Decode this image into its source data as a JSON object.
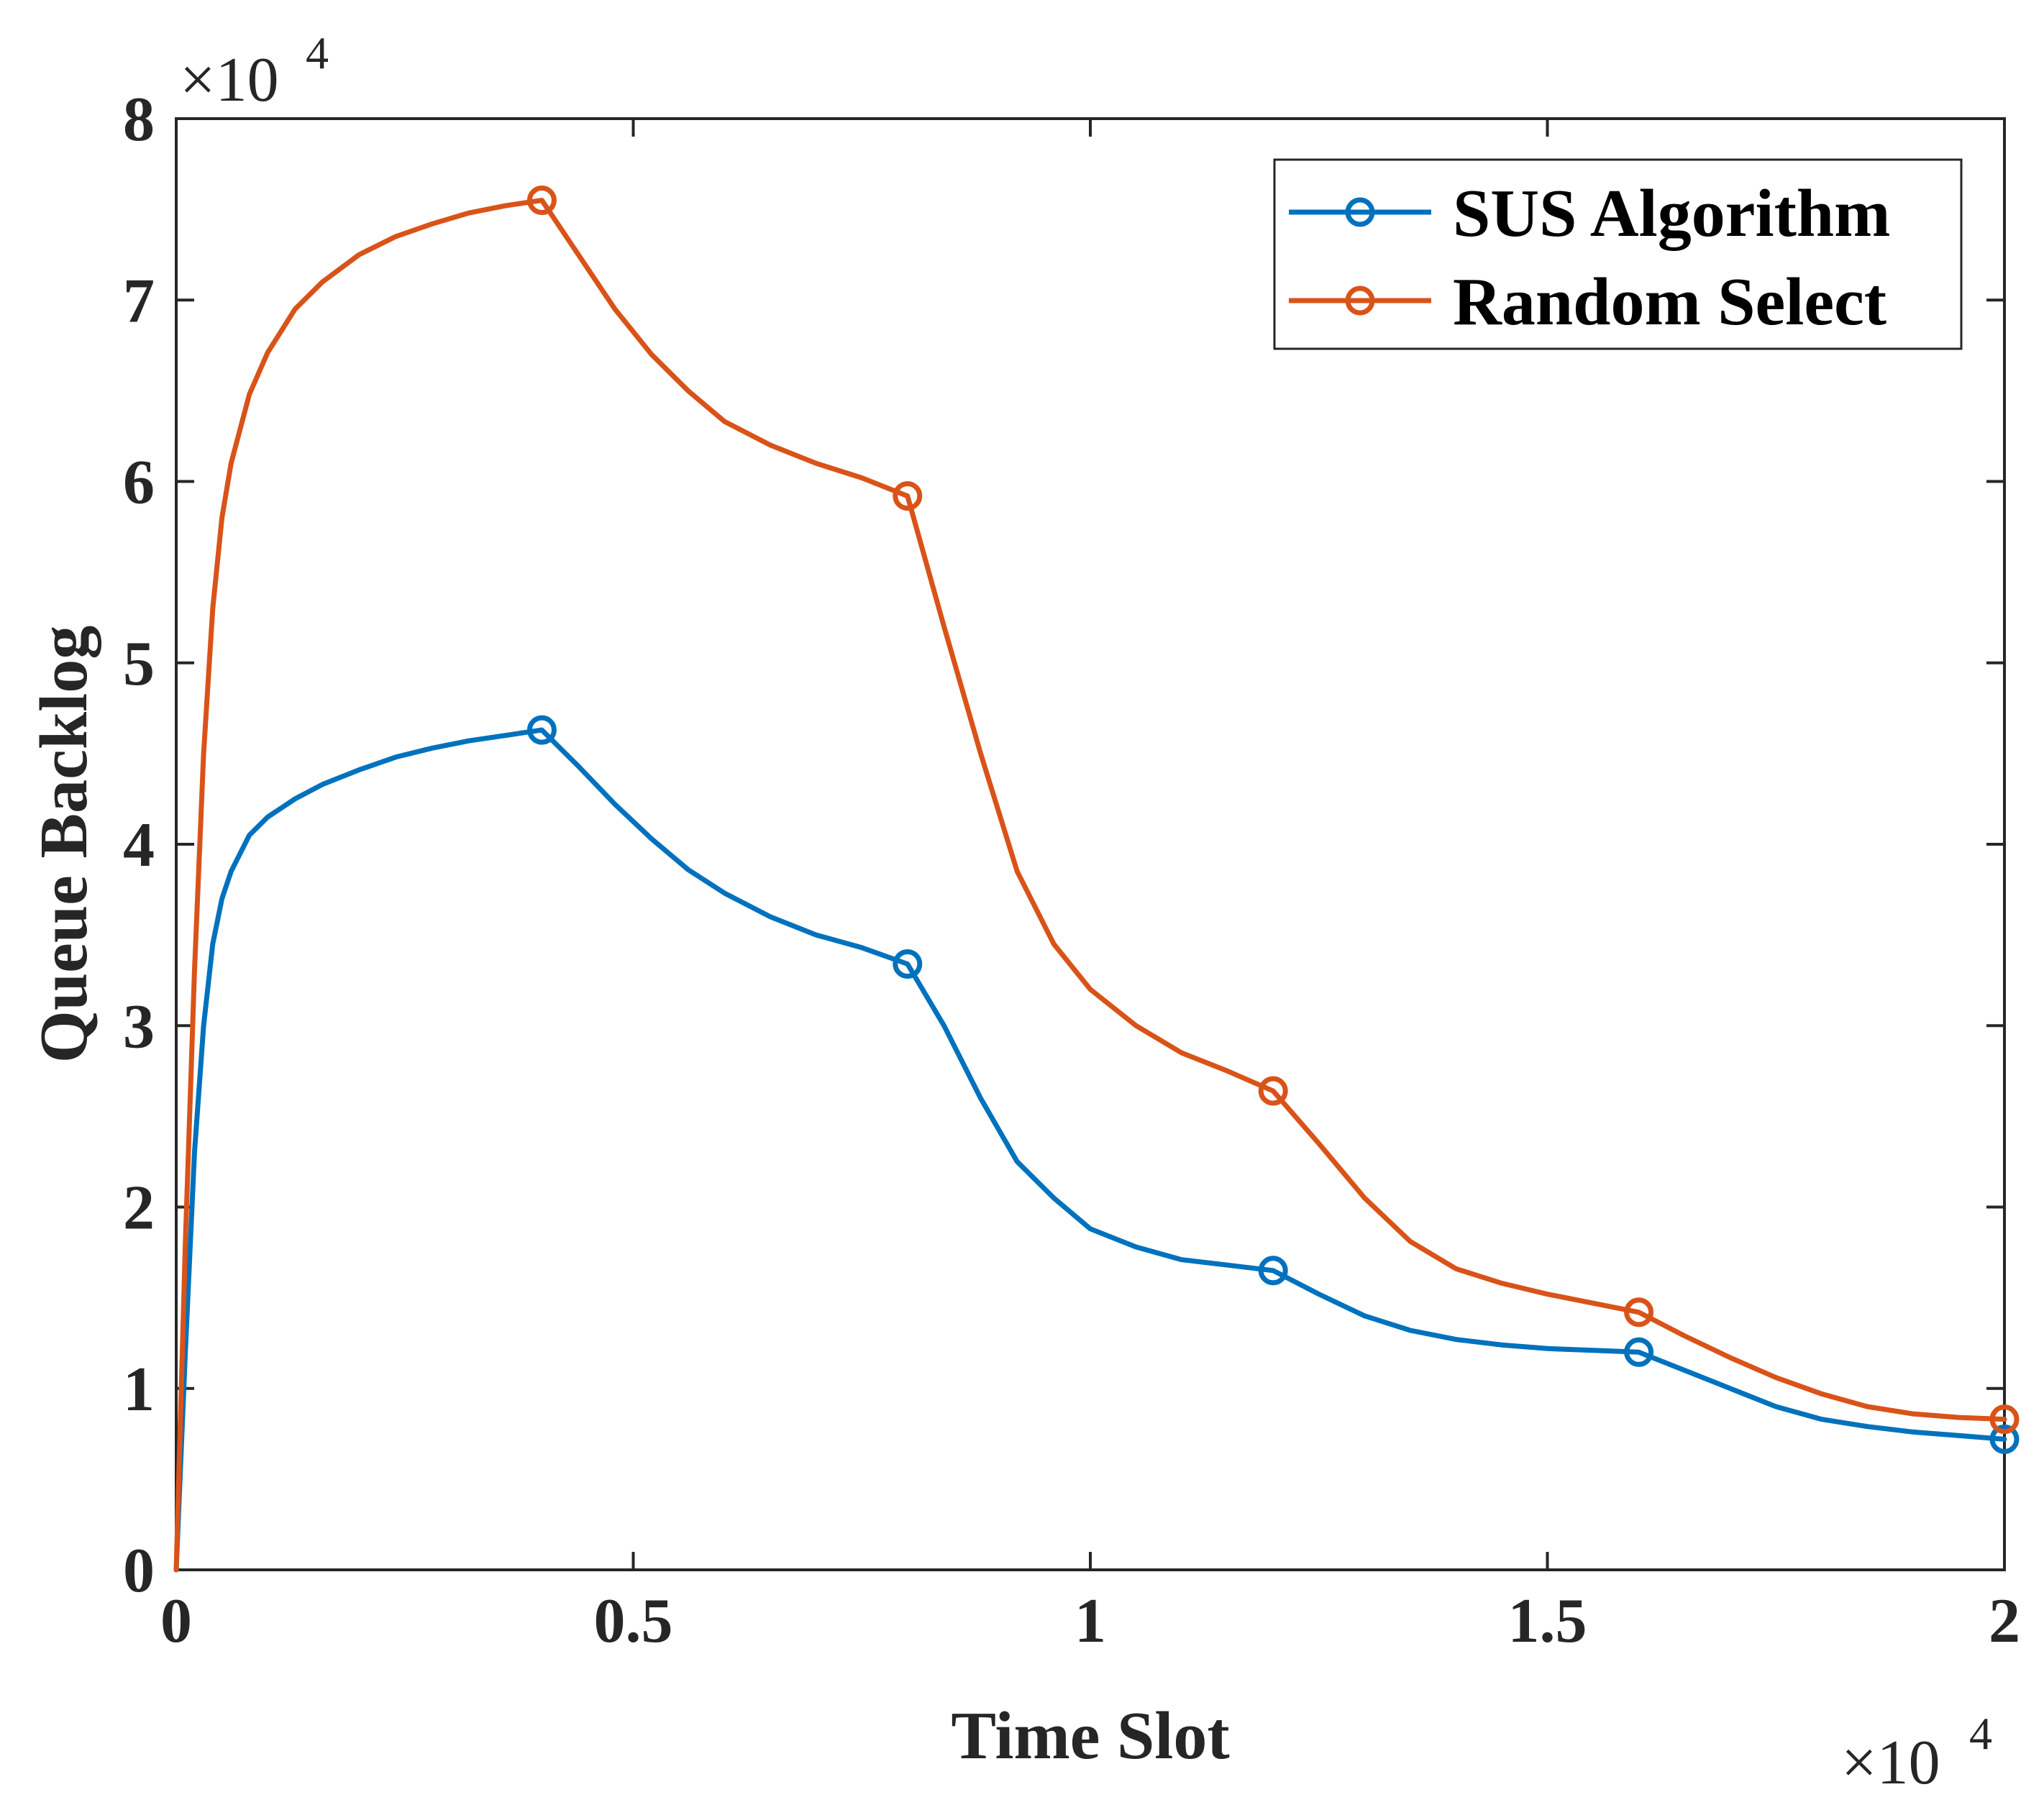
{
  "chart_data": {
    "type": "line",
    "xlabel": "Time Slot",
    "ylabel": "Queue Backlog",
    "x_exponent_label": "×10",
    "x_exponent": "4",
    "y_exponent_label": "×10",
    "y_exponent": "4",
    "xlim": [
      0,
      20000
    ],
    "ylim": [
      0,
      80000
    ],
    "x_ticks": [
      0,
      5000,
      10000,
      15000,
      20000
    ],
    "x_tick_labels": [
      "0",
      "0.5",
      "1",
      "1.5",
      "2"
    ],
    "y_ticks": [
      0,
      10000,
      20000,
      30000,
      40000,
      50000,
      60000,
      70000,
      80000
    ],
    "y_tick_labels": [
      "0",
      "1",
      "2",
      "3",
      "4",
      "5",
      "6",
      "7",
      "8"
    ],
    "grid": false,
    "legend_position": "top-right",
    "series": [
      {
        "name": "SUS Algorithm",
        "color": "#0072BD",
        "x": [
          0,
          100,
          200,
          300,
          400,
          500,
          600,
          800,
          1000,
          1300,
          1600,
          2000,
          2400,
          2800,
          3200,
          3600,
          4000,
          4400,
          4800,
          5200,
          5600,
          6000,
          6500,
          7000,
          7500,
          8000,
          8400,
          8800,
          9200,
          9600,
          10000,
          10500,
          11000,
          11500,
          12000,
          12500,
          13000,
          13500,
          14000,
          14500,
          15000,
          15500,
          16000,
          16500,
          17000,
          17500,
          18000,
          18500,
          19000,
          19500,
          20000
        ],
        "y": [
          0,
          12000,
          23000,
          30000,
          34500,
          37000,
          38500,
          40500,
          41500,
          42500,
          43300,
          44100,
          44800,
          45300,
          45700,
          46000,
          46300,
          44300,
          42200,
          40300,
          38600,
          37300,
          36000,
          35000,
          34300,
          33400,
          30000,
          26000,
          22500,
          20500,
          18800,
          17800,
          17100,
          16800,
          16500,
          15200,
          14000,
          13200,
          12700,
          12400,
          12200,
          12100,
          12000,
          11000,
          10000,
          9000,
          8300,
          7900,
          7600,
          7400,
          7200
        ],
        "markers_x": [
          4000,
          8000,
          12000,
          16000,
          20000
        ],
        "markers_y": [
          46300,
          33400,
          16500,
          12000,
          7200
        ]
      },
      {
        "name": "Random Select",
        "color": "#D95319",
        "x": [
          0,
          100,
          200,
          300,
          400,
          500,
          600,
          800,
          1000,
          1300,
          1600,
          2000,
          2400,
          2800,
          3200,
          3600,
          4000,
          4400,
          4800,
          5200,
          5600,
          6000,
          6500,
          7000,
          7500,
          8000,
          8400,
          8800,
          9200,
          9600,
          10000,
          10500,
          11000,
          11500,
          12000,
          12500,
          13000,
          13500,
          14000,
          14500,
          15000,
          15500,
          16000,
          16500,
          17000,
          17500,
          18000,
          18500,
          19000,
          19500,
          20000
        ],
        "y": [
          0,
          18000,
          33000,
          45000,
          53000,
          58000,
          61000,
          64800,
          67100,
          69500,
          71000,
          72500,
          73500,
          74200,
          74800,
          75200,
          75500,
          72500,
          69500,
          67000,
          65000,
          63300,
          62000,
          61000,
          60200,
          59200,
          52000,
          45000,
          38500,
          34500,
          32000,
          30000,
          28500,
          27500,
          26400,
          23500,
          20500,
          18100,
          16600,
          15800,
          15200,
          14700,
          14200,
          12900,
          11700,
          10600,
          9700,
          9000,
          8600,
          8400,
          8300
        ],
        "markers_x": [
          4000,
          8000,
          12000,
          16000,
          20000
        ],
        "markers_y": [
          75500,
          59200,
          26400,
          14200,
          8300
        ]
      }
    ]
  }
}
